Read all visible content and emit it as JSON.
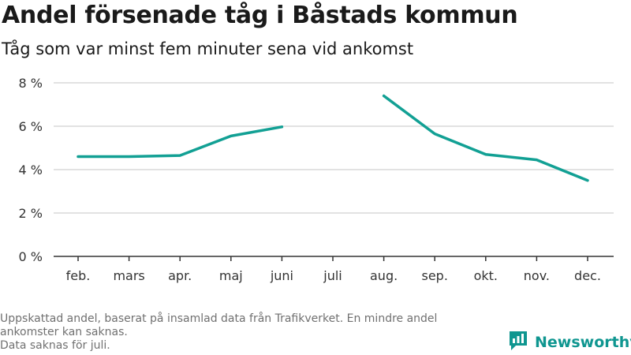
{
  "header": {
    "title": "Andel försenade tåg i Båstads kommun",
    "subtitle": "Tåg som var minst fem minuter sena vid ankomst"
  },
  "colors": {
    "series": "#12a094",
    "grid": "#d9d9d9",
    "axis": "#333333",
    "brand": "#0f9690"
  },
  "chart_data": {
    "type": "line",
    "categories": [
      "feb.",
      "mars",
      "apr.",
      "maj",
      "juni",
      "juli",
      "aug.",
      "sep.",
      "okt.",
      "nov.",
      "dec."
    ],
    "series": [
      {
        "values": [
          4.6,
          4.6,
          4.65,
          5.55,
          5.97,
          null,
          7.4,
          5.65,
          4.7,
          4.45,
          3.5
        ]
      }
    ],
    "y_ticks": [
      0,
      2,
      4,
      6,
      8
    ],
    "y_tick_labels": [
      "0 %",
      "2 %",
      "4 %",
      "6 %",
      "8 %"
    ],
    "ylim": [
      0,
      8
    ],
    "grid": true,
    "legend": "none"
  },
  "footnote": {
    "lines": [
      "Uppskattad andel, baserat på insamlad data från Trafikverket. En mindre andel",
      "ankomster kan saknas.",
      "Data saknas för juli."
    ]
  },
  "brand": {
    "name": "Newsworthy",
    "icon": "newsworthy-logo-icon"
  }
}
